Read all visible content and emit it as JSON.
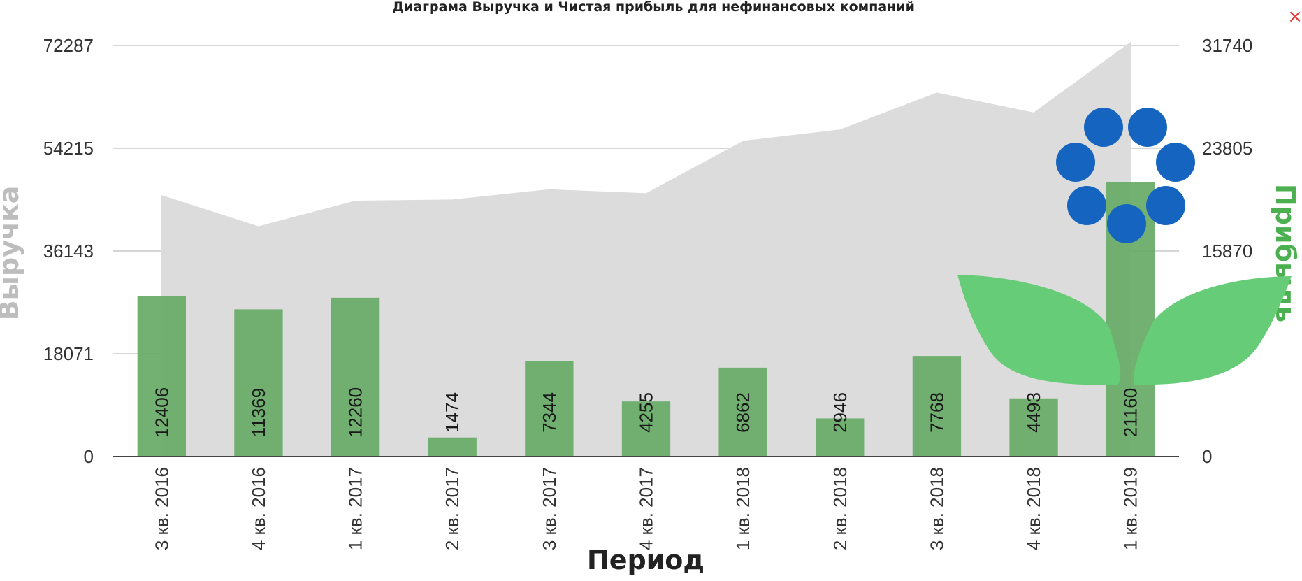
{
  "chart_data": {
    "type": "bar",
    "title": "Диаграма Выручка и Чистая прибыль для нефинансовых компаний",
    "xlabel": "Период",
    "ylabel_left": "Выручка",
    "ylabel_right": "Прибыль",
    "categories": [
      "3 кв. 2016",
      "4 кв. 2016",
      "1 кв. 2017",
      "2 кв. 2017",
      "3 кв. 2017",
      "4 кв. 2017",
      "1 кв. 2018",
      "2 кв. 2018",
      "3 кв. 2018",
      "4 кв. 2018",
      "1 кв. 2019"
    ],
    "left_axis": {
      "ticks": [
        "0",
        "18071",
        "36143",
        "54215",
        "72287"
      ],
      "ylim": [
        0,
        72287
      ]
    },
    "right_axis": {
      "ticks": [
        "0",
        "15870",
        "23805",
        "31740"
      ],
      "ylim": [
        0,
        31740
      ]
    },
    "series": [
      {
        "name": "Выручка",
        "type": "area",
        "axis": "left",
        "color": "#dcdcdc",
        "values": [
          46000,
          40500,
          45000,
          45200,
          47000,
          46300,
          55500,
          57500,
          64000,
          60500,
          73000
        ]
      },
      {
        "name": "Прибыль",
        "type": "bar",
        "axis": "right",
        "color": "#66aa66",
        "values": [
          12406,
          11369,
          12260,
          1474,
          7344,
          4255,
          6862,
          2946,
          7768,
          4493,
          21160
        ],
        "labels": [
          "12406",
          "11369",
          "12260",
          "1474",
          "7344",
          "4255",
          "6862",
          "2946",
          "7768",
          "4493",
          "21160"
        ]
      }
    ],
    "grid": true,
    "legend": "none"
  },
  "close_icon": "×",
  "decoration": {
    "name": "flower-logo",
    "petal_color": "#1565c0",
    "leaf_color": "#66cc77"
  }
}
